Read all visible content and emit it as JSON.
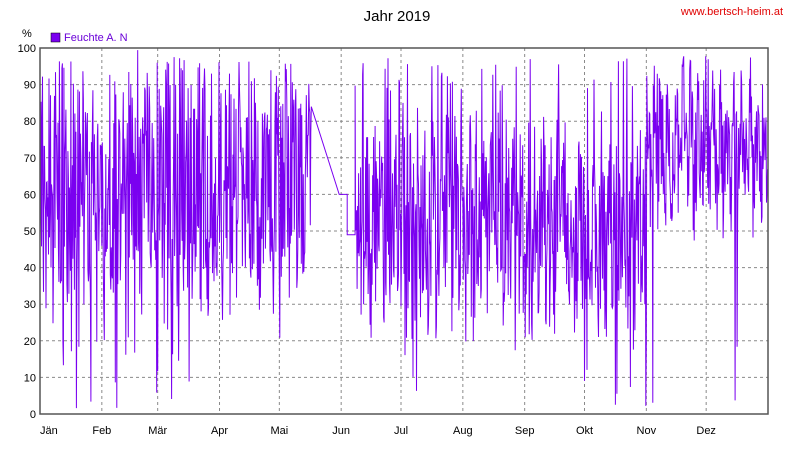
{
  "header": {
    "title": "Jahr 2019",
    "watermark": "www.bertsch-heim.at"
  },
  "chart_data": {
    "type": "line",
    "title": "Jahr 2019",
    "xlabel": "",
    "ylabel": "%",
    "ylim": [
      0,
      100
    ],
    "y_ticks": [
      0,
      10,
      20,
      30,
      40,
      50,
      60,
      70,
      80,
      90,
      100
    ],
    "x_range_days": [
      0,
      365
    ],
    "months": [
      {
        "label": "Jän",
        "day": 0
      },
      {
        "label": "Feb",
        "day": 31
      },
      {
        "label": "Mär",
        "day": 59
      },
      {
        "label": "Apr",
        "day": 90
      },
      {
        "label": "Mai",
        "day": 120
      },
      {
        "label": "Jun",
        "day": 151
      },
      {
        "label": "Jul",
        "day": 181
      },
      {
        "label": "Aug",
        "day": 212
      },
      {
        "label": "Sep",
        "day": 243
      },
      {
        "label": "Okt",
        "day": 273
      },
      {
        "label": "Nov",
        "day": 304
      },
      {
        "label": "Dez",
        "day": 334
      }
    ],
    "grid": true,
    "legend_position": "top-left",
    "series": [
      {
        "name": "Feuchte A. N",
        "color": "#7a00f0",
        "segments": [
          {
            "day_start": 0,
            "day_end": 136,
            "mean": 62,
            "spread": 30
          },
          {
            "day_start": 136,
            "day_end": 150,
            "gap_line": true,
            "from": 84,
            "to": 60
          },
          {
            "day_start": 150,
            "day_end": 154,
            "flat": 60
          },
          {
            "day_start": 154,
            "day_end": 158,
            "flat": 49
          },
          {
            "day_start": 158,
            "day_end": 304,
            "mean": 52,
            "spread": 25
          },
          {
            "day_start": 304,
            "day_end": 365,
            "mean": 72,
            "spread": 18
          }
        ]
      }
    ]
  }
}
